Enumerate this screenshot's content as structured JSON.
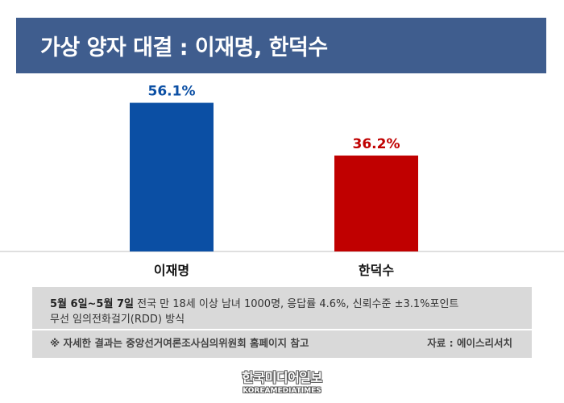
{
  "header": {
    "title": "가상 양자 대결 : 이재명, 한덕수"
  },
  "chart_data": {
    "type": "bar",
    "title": "가상 양자 대결 : 이재명, 한덕수",
    "categories": [
      "이재명",
      "한덕수"
    ],
    "values": [
      56.1,
      36.2
    ],
    "value_labels": [
      "56.1%",
      "36.2%"
    ],
    "colors": [
      "#0b4fa4",
      "#c00000"
    ],
    "label_colors": [
      "#0b4fa4",
      "#c00000"
    ],
    "ylim": [
      0,
      66
    ],
    "grid": false,
    "xlabel": "",
    "ylabel": ""
  },
  "notes": {
    "date": "5월 6일~5월 7일",
    "line1": "전국 만 18세 이상 남녀 1000명, 응답률 4.6%, 신뢰수준 ±3.1%포인트",
    "line2": "무선 임의전화걸기(RDD) 방식",
    "reference": "※ 자세한 결과는 중앙선거여론조사심의위원회 홈페이지 참고",
    "source": "자료 : 에이스리서치"
  },
  "logo": {
    "korean": "한국미디어일보",
    "english": "KOREAMEDIATIMES"
  }
}
